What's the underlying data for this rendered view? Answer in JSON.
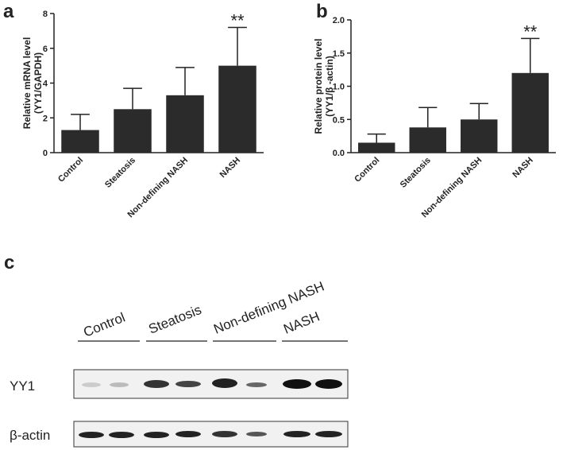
{
  "chart_data": [
    {
      "type": "bar",
      "label": "a",
      "y_label": [
        "Relative mRNA level",
        "(YY1/GAPDH)"
      ],
      "categories": [
        "Control",
        "Steatosis",
        "Non-defining NASH",
        "NASH"
      ],
      "values": [
        1.3,
        2.5,
        3.3,
        5.0
      ],
      "errors": [
        0.9,
        1.2,
        1.6,
        2.2
      ],
      "color": "#2b2b2b",
      "ylim": [
        0,
        8
      ],
      "yticks": [
        0,
        2,
        4,
        6,
        8
      ],
      "annotations": [
        {
          "text": "**",
          "category": "NASH"
        }
      ]
    },
    {
      "type": "bar",
      "label": "b",
      "y_label": [
        "Relative protein level",
        "(YY1/β -actin)"
      ],
      "categories": [
        "Control",
        "Steatosis",
        "Non-defining NASH",
        "NASH"
      ],
      "values": [
        0.15,
        0.38,
        0.5,
        1.2
      ],
      "errors": [
        0.13,
        0.3,
        0.24,
        0.52
      ],
      "color": "#2b2b2b",
      "ylim": [
        0,
        2
      ],
      "yticks": [
        {
          "value": 0,
          "label": "0.0"
        },
        0.5,
        {
          "value": 1,
          "label": "1.0"
        },
        1.5,
        {
          "value": 2,
          "label": "2.0"
        }
      ],
      "annotations": [
        {
          "text": "**",
          "category": "NASH"
        }
      ]
    }
  ],
  "blot": {
    "label": "c",
    "lanes": [
      "Control",
      "Steatosis",
      "Non-defining NASH",
      "NASH"
    ],
    "rows": [
      "YY1",
      "β-actin"
    ]
  }
}
